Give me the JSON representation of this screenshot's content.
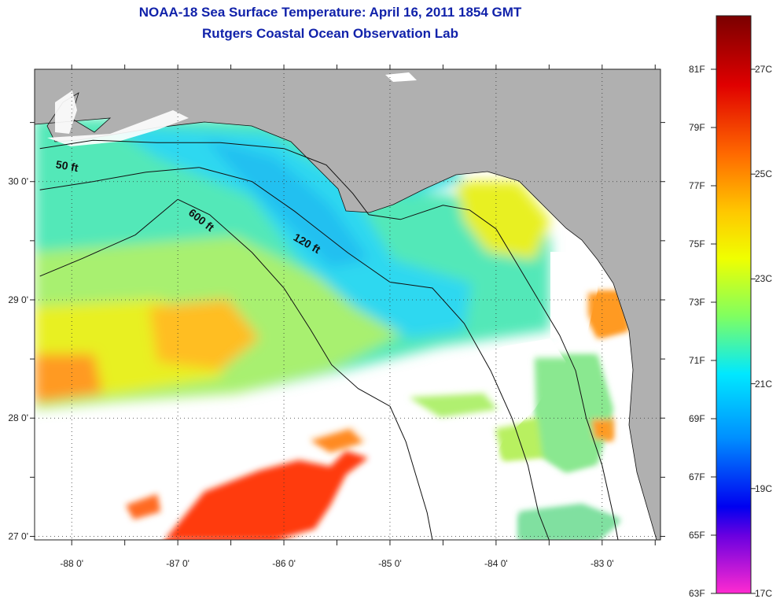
{
  "title": {
    "line1": "NOAA-18 Sea Surface Temperature:  April 16, 2011 1854 GMT",
    "line2": "Rutgers Coastal Ocean Observation Lab"
  },
  "map": {
    "lon_min": -88.35,
    "lon_max": -82.45,
    "lat_min": 26.97,
    "lat_max": 30.95,
    "lon_ticks": [
      {
        "value": -88,
        "label": "-88 0'"
      },
      {
        "value": -87,
        "label": "-87 0'"
      },
      {
        "value": -86,
        "label": "-86 0'"
      },
      {
        "value": -85,
        "label": "-85 0'"
      },
      {
        "value": -84,
        "label": "-84 0'"
      },
      {
        "value": -83,
        "label": "-83 0'"
      }
    ],
    "lat_ticks": [
      {
        "value": 30,
        "label": "30 0'"
      },
      {
        "value": 29,
        "label": "29 0'"
      },
      {
        "value": 28,
        "label": "28 0'"
      },
      {
        "value": 27,
        "label": "27 0'"
      }
    ],
    "grid": "dotted",
    "land_color": "#b0b0b0",
    "cloud_color": "#ffffff",
    "contours": [
      {
        "label": "50 ft",
        "label_lon": -88.05,
        "label_lat": 30.1,
        "label_rot": 10,
        "points": [
          [
            -88.3,
            30.28
          ],
          [
            -87.8,
            30.35
          ],
          [
            -87.2,
            30.33
          ],
          [
            -86.6,
            30.33
          ],
          [
            -86.0,
            30.28
          ],
          [
            -85.6,
            30.14
          ],
          [
            -85.35,
            29.9
          ],
          [
            -85.2,
            29.72
          ],
          [
            -84.9,
            29.68
          ],
          [
            -84.5,
            29.8
          ],
          [
            -84.25,
            29.76
          ],
          [
            -84.0,
            29.6
          ],
          [
            -83.8,
            29.3
          ],
          [
            -83.6,
            29.0
          ],
          [
            -83.4,
            28.7
          ],
          [
            -83.25,
            28.4
          ],
          [
            -83.15,
            28.0
          ],
          [
            -83.0,
            27.6
          ],
          [
            -82.9,
            27.2
          ],
          [
            -82.85,
            26.97
          ]
        ]
      },
      {
        "label": "120 ft",
        "label_lon": -85.8,
        "label_lat": 29.45,
        "label_rot": 30,
        "points": [
          [
            -88.3,
            29.93
          ],
          [
            -87.8,
            30.0
          ],
          [
            -87.3,
            30.08
          ],
          [
            -86.8,
            30.12
          ],
          [
            -86.3,
            30.0
          ],
          [
            -85.9,
            29.75
          ],
          [
            -85.4,
            29.4
          ],
          [
            -85.0,
            29.15
          ],
          [
            -84.6,
            29.1
          ],
          [
            -84.3,
            28.8
          ],
          [
            -84.05,
            28.4
          ],
          [
            -83.85,
            28.0
          ],
          [
            -83.7,
            27.6
          ],
          [
            -83.6,
            27.2
          ],
          [
            -83.5,
            26.97
          ]
        ]
      },
      {
        "label": "600 ft",
        "label_lon": -86.8,
        "label_lat": 29.65,
        "label_rot": 38,
        "points": [
          [
            -88.3,
            29.2
          ],
          [
            -87.9,
            29.35
          ],
          [
            -87.4,
            29.55
          ],
          [
            -87.0,
            29.85
          ],
          [
            -86.7,
            29.72
          ],
          [
            -86.3,
            29.4
          ],
          [
            -86.0,
            29.1
          ],
          [
            -85.75,
            28.75
          ],
          [
            -85.55,
            28.45
          ],
          [
            -85.3,
            28.25
          ],
          [
            -85.0,
            28.1
          ],
          [
            -84.85,
            27.8
          ],
          [
            -84.75,
            27.5
          ],
          [
            -84.65,
            27.2
          ],
          [
            -84.6,
            26.97
          ]
        ]
      }
    ]
  },
  "colorbar": {
    "top_color": "#7a0000",
    "bottom_color": "#ff2ad0",
    "f_labels": [
      "81F",
      "79F",
      "77F",
      "75F",
      "73F",
      "71F",
      "69F",
      "67F",
      "65F",
      "63F"
    ],
    "c_labels": [
      "27C",
      "25C",
      "23C",
      "21C",
      "19C",
      "17C"
    ]
  }
}
